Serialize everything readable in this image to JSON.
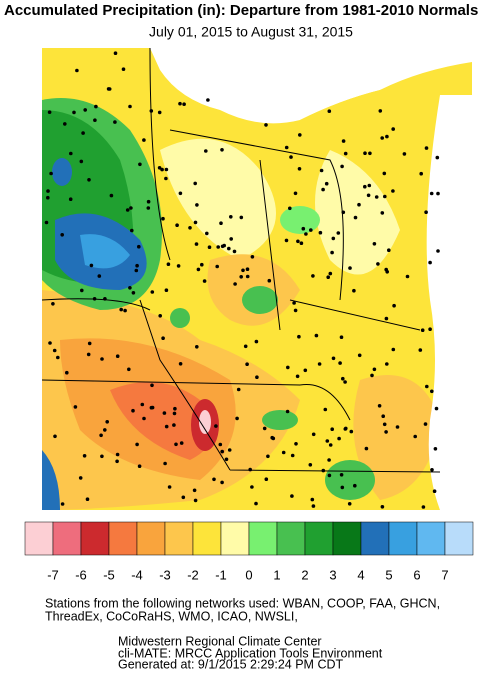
{
  "header": {
    "title": "Accumulated Precipitation (in): Departure from 1981-2010 Normals",
    "subtitle": "July 01, 2015 to August 31, 2015"
  },
  "legend": {
    "colors": [
      "#fccfd4",
      "#ee6d7d",
      "#cc2a2e",
      "#f5793f",
      "#f9a43d",
      "#fdc64c",
      "#fde43a",
      "#fffba8",
      "#78f070",
      "#48c050",
      "#20a030",
      "#087818",
      "#2270b8",
      "#38a0e0",
      "#60b8f0",
      "#b8dcfa"
    ],
    "ticks": [
      -7,
      -6,
      -5,
      -4,
      -3,
      -2,
      -1,
      0,
      1,
      2,
      3,
      4,
      5,
      6,
      7
    ]
  },
  "footer": {
    "networks": [
      "Stations from the following networks used: WBAN, COOP, FAA, GHCN,",
      "ThreadEx, CoCoRaHS, WMO, ICAO, NWSLI,"
    ],
    "credits": [
      "Midwestern Regional Climate Center",
      "cli-MATE: MRCC Application Tools Environment",
      "Generated at: 9/1/2015 2:29:24 PM CDT"
    ]
  }
}
